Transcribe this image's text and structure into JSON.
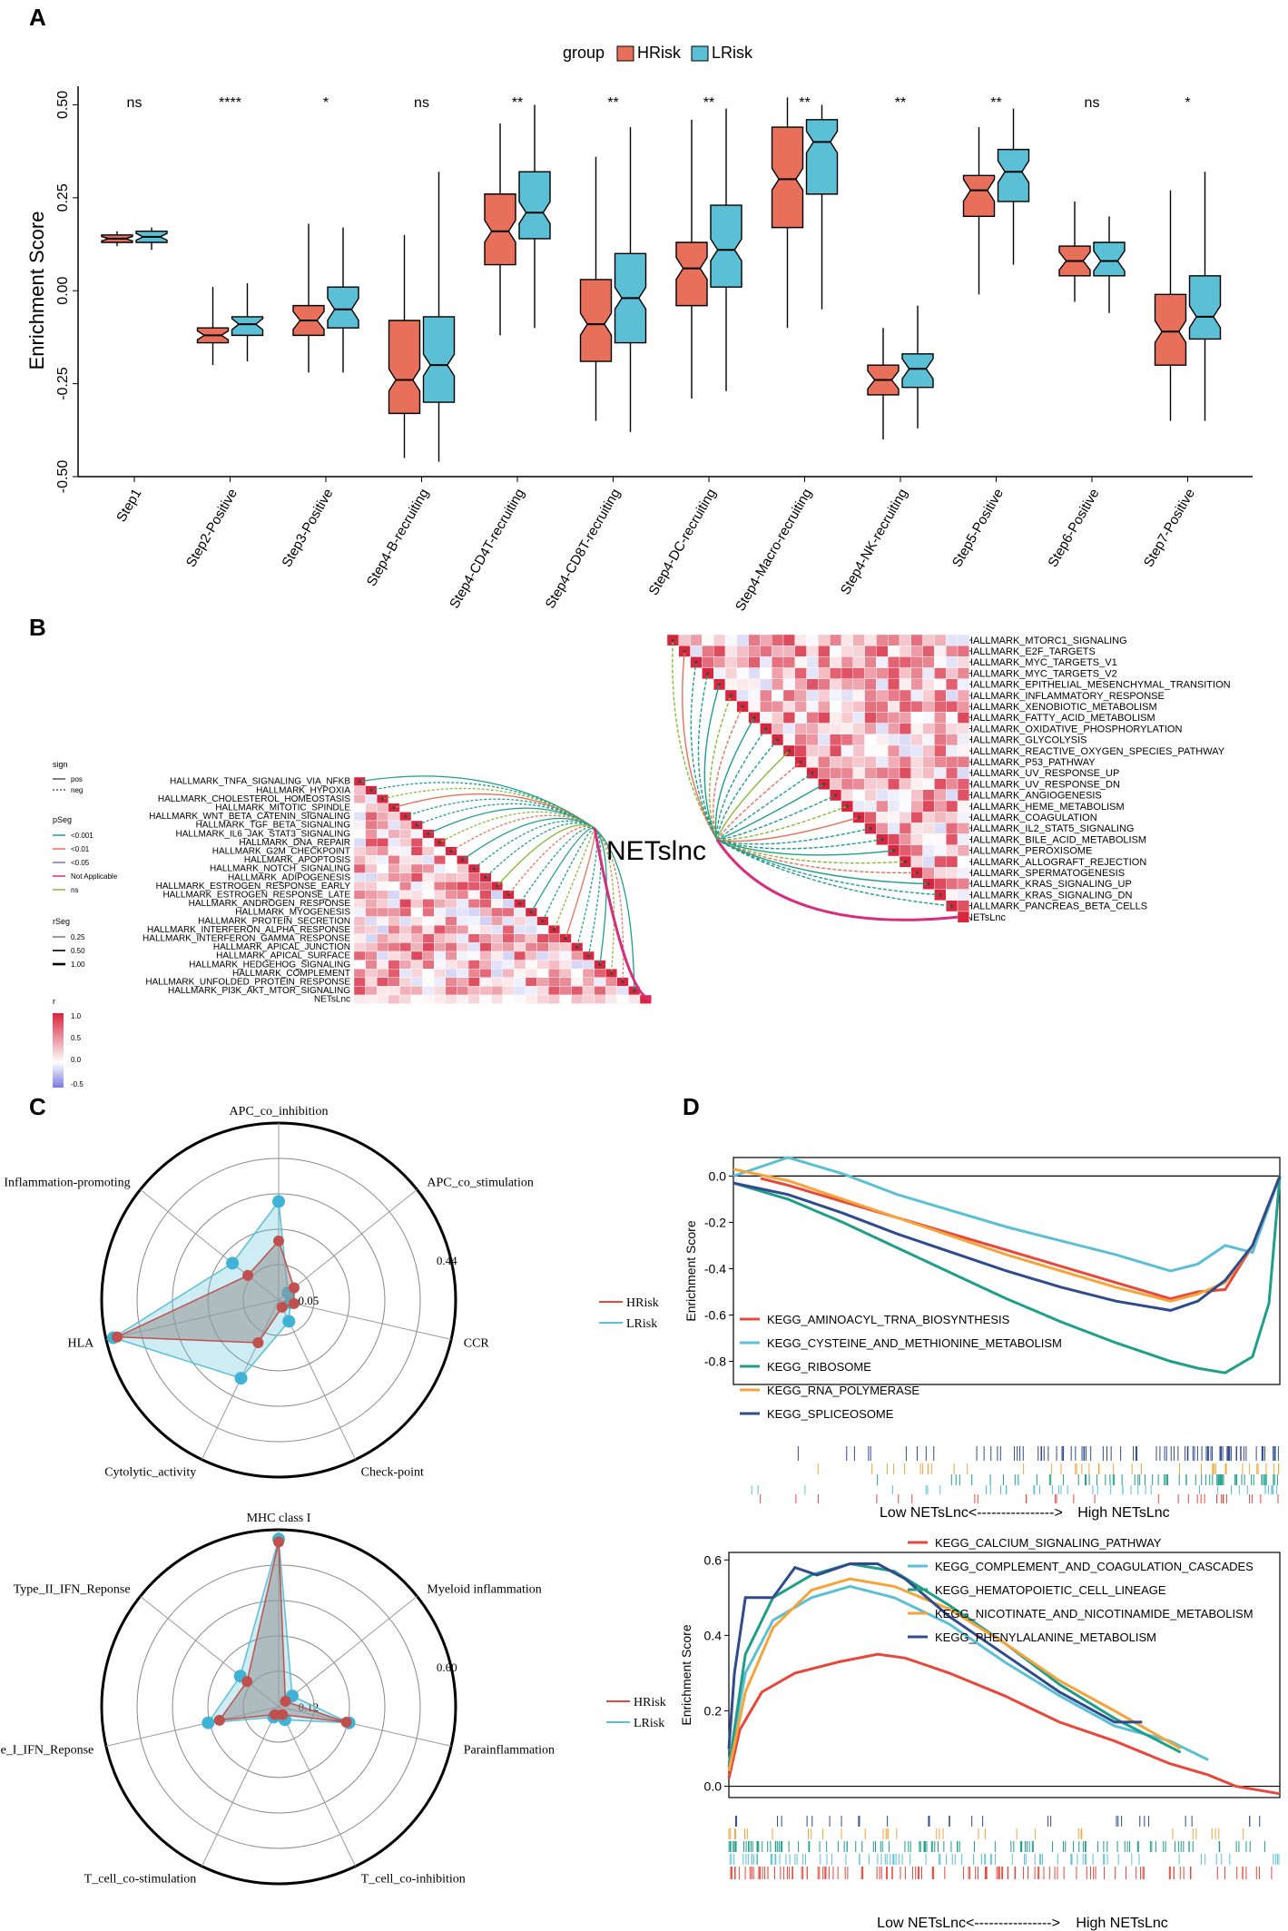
{
  "panel_labels": [
    "A",
    "B",
    "C",
    "D"
  ],
  "colors": {
    "hrisk": "#E8705B",
    "lrisk": "#5BBFD6",
    "heat_pos": "#D7263D",
    "heat_neg": "#6A6AD8"
  },
  "chart_data": [
    {
      "id": "A",
      "type": "box",
      "title": "",
      "legend_title": "group",
      "legend": [
        "HRisk",
        "LRisk"
      ],
      "ylabel": "Enrichment Score",
      "ylim": [
        -0.5,
        0.55
      ],
      "yticks": [
        "-0.50",
        "-0.25",
        "0.00",
        "0.25",
        "0.50"
      ],
      "ytick_values": [
        -0.5,
        -0.25,
        0,
        0.25,
        0.5
      ],
      "categories": [
        "Step1",
        "Step2-Positive",
        "Step3-Positive",
        "Step4-B-recruiting",
        "Step4-CD4T-recruiting",
        "Step4-CD8T-recruiting",
        "Step4-DC-recruiting",
        "Step4-Macro-recruiting",
        "Step4-NK-recruiting",
        "Step5-Positive",
        "Step6-Positive",
        "Step7-Positive"
      ],
      "significance": [
        "ns",
        "****",
        "*",
        "ns",
        "**",
        "**",
        "**",
        "**",
        "**",
        "**",
        "ns",
        "*"
      ],
      "series": [
        {
          "name": "HRisk",
          "boxes": [
            [
              0.12,
              0.13,
              0.14,
              0.15,
              0.16
            ],
            [
              -0.2,
              -0.14,
              -0.12,
              -0.1,
              0.01
            ],
            [
              -0.22,
              -0.12,
              -0.08,
              -0.04,
              0.18
            ],
            [
              -0.45,
              -0.33,
              -0.24,
              -0.08,
              0.15
            ],
            [
              -0.12,
              0.07,
              0.16,
              0.26,
              0.45
            ],
            [
              -0.35,
              -0.19,
              -0.09,
              0.03,
              0.36
            ],
            [
              -0.29,
              -0.04,
              0.06,
              0.13,
              0.46
            ],
            [
              -0.1,
              0.17,
              0.3,
              0.44,
              0.52
            ],
            [
              -0.4,
              -0.28,
              -0.24,
              -0.2,
              -0.1
            ],
            [
              -0.01,
              0.2,
              0.27,
              0.31,
              0.44
            ],
            [
              -0.03,
              0.04,
              0.08,
              0.12,
              0.24
            ],
            [
              -0.35,
              -0.2,
              -0.11,
              -0.01,
              0.27
            ]
          ]
        },
        {
          "name": "LRisk",
          "boxes": [
            [
              0.11,
              0.13,
              0.145,
              0.16,
              0.17
            ],
            [
              -0.19,
              -0.12,
              -0.09,
              -0.07,
              0.02
            ],
            [
              -0.22,
              -0.1,
              -0.05,
              0.01,
              0.17
            ],
            [
              -0.46,
              -0.3,
              -0.2,
              -0.07,
              0.32
            ],
            [
              -0.1,
              0.14,
              0.21,
              0.32,
              0.5
            ],
            [
              -0.38,
              -0.14,
              -0.02,
              0.1,
              0.44
            ],
            [
              -0.27,
              0.01,
              0.11,
              0.23,
              0.49
            ],
            [
              -0.05,
              0.26,
              0.4,
              0.46,
              0.5
            ],
            [
              -0.37,
              -0.26,
              -0.21,
              -0.17,
              -0.04
            ],
            [
              0.07,
              0.24,
              0.32,
              0.38,
              0.49
            ],
            [
              -0.06,
              0.04,
              0.08,
              0.13,
              0.2
            ],
            [
              -0.35,
              -0.13,
              -0.07,
              0.04,
              0.32
            ]
          ]
        }
      ]
    },
    {
      "id": "B",
      "type": "heatmap",
      "center_label": "NETslnc",
      "legend_sign_title": "sign",
      "legend_sign": [
        "pos",
        "neg"
      ],
      "legend_pseg_title": "pSeg",
      "legend_pseg": [
        "<0.001",
        "<0.01",
        "<0.05",
        "Not Applicable",
        "ns"
      ],
      "legend_rseg_title": "rSeg",
      "legend_rseg": [
        "0.25",
        "0.50",
        "1.00"
      ],
      "legend_r_title": "r",
      "legend_r": [
        "1.0",
        "0.5",
        "0.0",
        "-0.5"
      ],
      "left_rows": [
        "HALLMARK_TNFA_SIGNALING_VIA_NFKB",
        "HALLMARK_HYPOXIA",
        "HALLMARK_CHOLESTEROL_HOMEOSTASIS",
        "HALLMARK_MITOTIC_SPINDLE",
        "HALLMARK_WNT_BETA_CATENIN_SIGNALING",
        "HALLMARK_TGF_BETA_SIGNALING",
        "HALLMARK_IL6_JAK_STAT3_SIGNALING",
        "HALLMARK_DNA_REPAIR",
        "HALLMARK_G2M_CHECKPOINT",
        "HALLMARK_APOPTOSIS",
        "HALLMARK_NOTCH_SIGNALING",
        "HALLMARK_ADIPOGENESIS",
        "HALLMARK_ESTROGEN_RESPONSE_EARLY",
        "HALLMARK_ESTROGEN_RESPONSE_LATE",
        "HALLMARK_ANDROGEN_RESPONSE",
        "HALLMARK_MYOGENESIS",
        "HALLMARK_PROTEIN_SECRETION",
        "HALLMARK_INTERFERON_ALPHA_RESPONSE",
        "HALLMARK_INTERFERON_GAMMA_RESPONSE",
        "HALLMARK_APICAL_JUNCTION",
        "HALLMARK_APICAL_SURFACE",
        "HALLMARK_HEDGEHOG_SIGNALING",
        "HALLMARK_COMPLEMENT",
        "HALLMARK_UNFOLDED_PROTEIN_RESPONSE",
        "HALLMARK_PI3K_AKT_MTOR_SIGNALING",
        "NETsLnc"
      ],
      "right_rows": [
        "HALLMARK_MTORC1_SIGNALING",
        "HALLMARK_E2F_TARGETS",
        "HALLMARK_MYC_TARGETS_V1",
        "HALLMARK_MYC_TARGETS_V2",
        "HALLMARK_EPITHELIAL_MESENCHYMAL_TRANSITION",
        "HALLMARK_INFLAMMATORY_RESPONSE",
        "HALLMARK_XENOBIOTIC_METABOLISM",
        "HALLMARK_FATTY_ACID_METABOLISM",
        "HALLMARK_OXIDATIVE_PHOSPHORYLATION",
        "HALLMARK_GLYCOLYSIS",
        "HALLMARK_REACTIVE_OXYGEN_SPECIES_PATHWAY",
        "HALLMARK_P53_PATHWAY",
        "HALLMARK_UV_RESPONSE_UP",
        "HALLMARK_UV_RESPONSE_DN",
        "HALLMARK_ANGIOGENESIS",
        "HALLMARK_HEME_METABOLISM",
        "HALLMARK_COAGULATION",
        "HALLMARK_IL2_STAT5_SIGNALING",
        "HALLMARK_BILE_ACID_METABOLISM",
        "HALLMARK_PEROXISOME",
        "HALLMARK_ALLOGRAFT_REJECTION",
        "HALLMARK_SPERMATOGENESIS",
        "HALLMARK_KRAS_SIGNALING_UP",
        "HALLMARK_KRAS_SIGNALING_DN",
        "HALLMARK_PANCREAS_BETA_CELLS",
        "NETsLnc"
      ]
    },
    {
      "id": "C-top",
      "type": "radar",
      "axes": [
        "APC_co_inhibition",
        "APC_co_stimulation",
        "CCR",
        "Check-point",
        "Cytolytic_activity",
        "HLA",
        "Inflammation-promoting"
      ],
      "radial_labels": [
        "0.05",
        "0.44"
      ],
      "rmax": 0.44,
      "legend": [
        "HRisk",
        "LRisk"
      ],
      "series": [
        {
          "name": "HRisk",
          "values": [
            0.15,
            0.05,
            0.04,
            0.02,
            0.12,
            0.42,
            0.1
          ]
        },
        {
          "name": "LRisk",
          "values": [
            0.25,
            0.03,
            0.03,
            0.06,
            0.22,
            0.43,
            0.15
          ]
        }
      ]
    },
    {
      "id": "C-bottom",
      "type": "radar",
      "axes": [
        "MHC class I",
        "Myeloid inflammation",
        "Parainflammation",
        "T_cell_co-inhibition",
        "T_cell_co-stimulation",
        "Type_I_IFN_Reponse",
        "Type_II_IFN_Reponse"
      ],
      "radial_labels": [
        "0.12",
        "0.60"
      ],
      "rmax": 0.6,
      "legend": [
        "HRisk",
        "LRisk"
      ],
      "series": [
        {
          "name": "HRisk",
          "values": [
            0.57,
            0.03,
            0.24,
            0.03,
            0.03,
            0.21,
            0.14
          ]
        },
        {
          "name": "LRisk",
          "values": [
            0.58,
            0.06,
            0.25,
            0.05,
            0.04,
            0.25,
            0.17
          ]
        }
      ]
    },
    {
      "id": "D-top",
      "type": "line",
      "ylabel": "Enrichment Score",
      "yticks": [
        "0.0",
        "-0.2",
        "-0.4",
        "-0.6",
        "-0.8"
      ],
      "ytick_values": [
        0,
        -0.2,
        -0.4,
        -0.6,
        -0.8
      ],
      "ylim": [
        -0.9,
        0.08
      ],
      "xlim": [
        0,
        1
      ],
      "axis_label_low": "Low NETsLnc",
      "axis_label_arrow": "<---------------->",
      "axis_label_high": "High NETsLnc",
      "series": [
        {
          "name": "KEGG_AMINOACYL_TRNA_BIOSYNTHESIS",
          "color": "#E8483B",
          "x": [
            0.05,
            0.1,
            0.2,
            0.3,
            0.4,
            0.5,
            0.6,
            0.7,
            0.8,
            0.85,
            0.9,
            0.95,
            1.0
          ],
          "y": [
            -0.01,
            -0.04,
            -0.11,
            -0.18,
            -0.25,
            -0.32,
            -0.39,
            -0.46,
            -0.53,
            -0.5,
            -0.49,
            -0.3,
            0.0
          ]
        },
        {
          "name": "KEGG_CYSTEINE_AND_METHIONINE_METABOLISM",
          "color": "#5BBFD6",
          "x": [
            0.0,
            0.1,
            0.2,
            0.3,
            0.4,
            0.5,
            0.6,
            0.7,
            0.8,
            0.85,
            0.9,
            0.95,
            1.0
          ],
          "y": [
            0.0,
            0.08,
            0.01,
            -0.08,
            -0.15,
            -0.22,
            -0.28,
            -0.34,
            -0.41,
            -0.38,
            -0.3,
            -0.33,
            0.0
          ]
        },
        {
          "name": "KEGG_RIBOSOME",
          "color": "#1F9E89",
          "x": [
            0.0,
            0.1,
            0.2,
            0.3,
            0.4,
            0.5,
            0.6,
            0.7,
            0.8,
            0.85,
            0.9,
            0.95,
            0.98,
            1.0
          ],
          "y": [
            -0.03,
            -0.1,
            -0.2,
            -0.31,
            -0.42,
            -0.53,
            -0.63,
            -0.72,
            -0.8,
            -0.83,
            -0.85,
            -0.78,
            -0.55,
            0.0
          ]
        },
        {
          "name": "KEGG_RNA_POLYMERASE",
          "color": "#F4A43A",
          "x": [
            0.0,
            0.1,
            0.2,
            0.3,
            0.4,
            0.5,
            0.6,
            0.7,
            0.8,
            0.85,
            0.9,
            0.95,
            1.0
          ],
          "y": [
            0.03,
            -0.02,
            -0.1,
            -0.18,
            -0.26,
            -0.34,
            -0.41,
            -0.48,
            -0.54,
            -0.51,
            -0.46,
            -0.3,
            0.0
          ]
        },
        {
          "name": "KEGG_SPLICEOSOME",
          "color": "#2F4B8C",
          "x": [
            0.0,
            0.1,
            0.2,
            0.3,
            0.4,
            0.5,
            0.6,
            0.7,
            0.8,
            0.85,
            0.9,
            0.95,
            1.0
          ],
          "y": [
            -0.03,
            -0.08,
            -0.16,
            -0.25,
            -0.33,
            -0.41,
            -0.48,
            -0.54,
            -0.58,
            -0.54,
            -0.45,
            -0.3,
            0.0
          ]
        }
      ]
    },
    {
      "id": "D-bottom",
      "type": "line",
      "ylabel": "Enrichment Score",
      "yticks": [
        "0.6",
        "0.4",
        "0.2",
        "0.0"
      ],
      "ytick_values": [
        0.6,
        0.4,
        0.2,
        0.0
      ],
      "ylim": [
        -0.03,
        0.62
      ],
      "xlim": [
        0,
        1
      ],
      "legend": [
        "HRisk",
        "LRisk"
      ],
      "axis_label_low": "Low NETsLnc",
      "axis_label_arrow": "<---------------->",
      "axis_label_high": "High NETsLnc",
      "series": [
        {
          "name": "KEGG_CALCIUM_SIGNALING_PATHWAY",
          "color": "#E8483B",
          "x": [
            0.0,
            0.02,
            0.06,
            0.12,
            0.2,
            0.27,
            0.32,
            0.4,
            0.5,
            0.6,
            0.7,
            0.8,
            0.87,
            0.92,
            0.96,
            1.0
          ],
          "y": [
            0.02,
            0.15,
            0.25,
            0.3,
            0.33,
            0.35,
            0.34,
            0.3,
            0.24,
            0.17,
            0.12,
            0.06,
            0.03,
            0.0,
            -0.01,
            -0.02
          ]
        },
        {
          "name": "KEGG_COMPLEMENT_AND_COAGULATION_CASCADES",
          "color": "#5BBFD6",
          "x": [
            0.0,
            0.03,
            0.08,
            0.15,
            0.22,
            0.3,
            0.4,
            0.5,
            0.6,
            0.7,
            0.8,
            0.87
          ],
          "y": [
            0.06,
            0.3,
            0.44,
            0.5,
            0.53,
            0.5,
            0.43,
            0.33,
            0.24,
            0.16,
            0.12,
            0.07
          ]
        },
        {
          "name": "KEGG_HEMATOPOIETIC_CELL_LINEAGE",
          "color": "#1F9E89",
          "x": [
            0.0,
            0.03,
            0.08,
            0.15,
            0.22,
            0.3,
            0.4,
            0.5,
            0.6,
            0.7,
            0.82
          ],
          "y": [
            0.05,
            0.35,
            0.5,
            0.56,
            0.59,
            0.57,
            0.48,
            0.38,
            0.27,
            0.18,
            0.09
          ]
        },
        {
          "name": "KEGG_NICOTINATE_AND_NICOTINAMIDE_METABOLISM",
          "color": "#F4A43A",
          "x": [
            0.0,
            0.03,
            0.08,
            0.15,
            0.22,
            0.3,
            0.4,
            0.5,
            0.6,
            0.7,
            0.82
          ],
          "y": [
            0.04,
            0.25,
            0.42,
            0.52,
            0.55,
            0.53,
            0.47,
            0.38,
            0.28,
            0.2,
            0.1
          ]
        },
        {
          "name": "KEGG_PHENYLALANINE_METABOLISM",
          "color": "#2F4B8C",
          "x": [
            0.0,
            0.01,
            0.03,
            0.08,
            0.12,
            0.16,
            0.22,
            0.27,
            0.32,
            0.4,
            0.5,
            0.6,
            0.7,
            0.75
          ],
          "y": [
            0.1,
            0.3,
            0.5,
            0.5,
            0.58,
            0.56,
            0.59,
            0.59,
            0.55,
            0.45,
            0.35,
            0.25,
            0.17,
            0.17
          ]
        }
      ]
    }
  ]
}
